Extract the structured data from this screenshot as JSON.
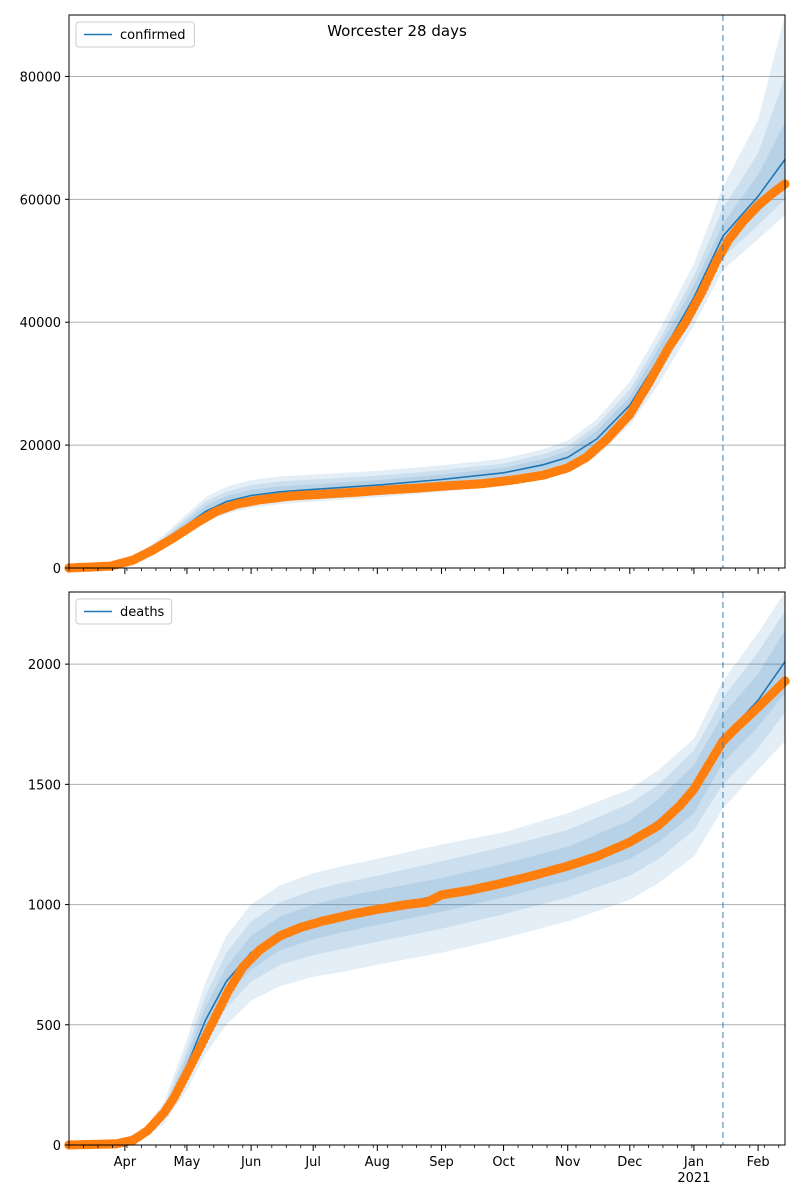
{
  "title": "Worcester 28 days",
  "colors": {
    "model": "#1f77b4",
    "observed": "#ff7f0e",
    "band": "#1f77b4",
    "grid": "#b0b0b0",
    "cutoff": "#1f77b4"
  },
  "cutoff_label_date": "2021-01-15",
  "x_axis": {
    "range": [
      "2020-03-05",
      "2021-02-14"
    ],
    "month_ticks": [
      {
        "label": "Apr",
        "date": "2020-04-01"
      },
      {
        "label": "May",
        "date": "2020-05-01"
      },
      {
        "label": "Jun",
        "date": "2020-06-01"
      },
      {
        "label": "Jul",
        "date": "2020-07-01"
      },
      {
        "label": "Aug",
        "date": "2020-08-01"
      },
      {
        "label": "Sep",
        "date": "2020-09-01"
      },
      {
        "label": "Oct",
        "date": "2020-10-01"
      },
      {
        "label": "Nov",
        "date": "2020-11-01"
      },
      {
        "label": "Dec",
        "date": "2020-12-01"
      },
      {
        "label": "Jan",
        "date": "2021-01-01"
      },
      {
        "label": "Feb",
        "date": "2021-02-01"
      }
    ],
    "year_label": "2021"
  },
  "chart_data": [
    {
      "type": "line",
      "name": "confirmed",
      "legend": "confirmed",
      "legend_position": "upper-left",
      "grid": "horizontal",
      "ylim": [
        0,
        90000
      ],
      "yticks": [
        0,
        20000,
        40000,
        60000,
        80000
      ],
      "model": [
        [
          "2020-03-05",
          0
        ],
        [
          "2020-03-20",
          150
        ],
        [
          "2020-04-01",
          900
        ],
        [
          "2020-04-10",
          2200
        ],
        [
          "2020-04-20",
          4200
        ],
        [
          "2020-05-01",
          7000
        ],
        [
          "2020-05-10",
          9200
        ],
        [
          "2020-05-20",
          10800
        ],
        [
          "2020-06-01",
          11800
        ],
        [
          "2020-06-15",
          12400
        ],
        [
          "2020-07-01",
          12800
        ],
        [
          "2020-08-01",
          13500
        ],
        [
          "2020-09-01",
          14400
        ],
        [
          "2020-10-01",
          15500
        ],
        [
          "2020-10-20",
          16800
        ],
        [
          "2020-11-01",
          18000
        ],
        [
          "2020-11-15",
          21000
        ],
        [
          "2020-12-01",
          26500
        ],
        [
          "2020-12-15",
          34000
        ],
        [
          "2021-01-01",
          44000
        ],
        [
          "2021-01-15",
          54000
        ],
        [
          "2021-02-01",
          60500
        ],
        [
          "2021-02-14",
          66500
        ]
      ],
      "bands": [
        {
          "lower": [
            0,
            0,
            700,
            1800,
            3300,
            5500,
            7400,
            8800,
            9800,
            10400,
            10800,
            11500,
            12400,
            13400,
            14600,
            15700,
            18200,
            23200,
            30000,
            39500,
            48500,
            53500,
            57500
          ],
          "upper": [
            0,
            220,
            1200,
            2800,
            5400,
            8800,
            11500,
            13200,
            14300,
            14900,
            15200,
            15800,
            16700,
            17800,
            19300,
            20700,
            24200,
            30300,
            38500,
            49500,
            62000,
            73000,
            90000
          ]
        },
        {
          "lower": [
            0,
            0,
            780,
            1950,
            3600,
            6000,
            8000,
            9500,
            10500,
            11100,
            11500,
            12200,
            13100,
            14100,
            15300,
            16400,
            19000,
            24300,
            31500,
            41000,
            50500,
            55800,
            60000
          ],
          "upper": [
            0,
            200,
            1100,
            2600,
            5000,
            8200,
            10800,
            12400,
            13500,
            14100,
            14400,
            15000,
            15900,
            17000,
            18500,
            19800,
            23200,
            29000,
            37000,
            47500,
            58500,
            67500,
            80000
          ],
          "alpha": 0.12
        },
        {
          "lower": [
            0,
            0,
            830,
            2050,
            3850,
            6400,
            8500,
            10100,
            11100,
            11700,
            12100,
            12800,
            13700,
            14800,
            16000,
            17100,
            19900,
            25300,
            32600,
            42300,
            52300,
            57800,
            62500
          ],
          "upper": [
            0,
            180,
            1000,
            2400,
            4700,
            7700,
            10100,
            11700,
            12700,
            13300,
            13600,
            14300,
            15200,
            16300,
            17700,
            19000,
            22300,
            27900,
            35800,
            46000,
            56000,
            64000,
            72500
          ],
          "alpha": 0.12
        }
      ],
      "observed": [
        [
          "2020-03-05",
          0
        ],
        [
          "2020-03-25",
          300
        ],
        [
          "2020-04-05",
          1300
        ],
        [
          "2020-04-15",
          3000
        ],
        [
          "2020-04-25",
          5000
        ],
        [
          "2020-05-05",
          7200
        ],
        [
          "2020-05-15",
          9200
        ],
        [
          "2020-05-25",
          10400
        ],
        [
          "2020-06-05",
          11100
        ],
        [
          "2020-06-20",
          11700
        ],
        [
          "2020-07-05",
          12000
        ],
        [
          "2020-07-20",
          12300
        ],
        [
          "2020-08-05",
          12700
        ],
        [
          "2020-08-20",
          13000
        ],
        [
          "2020-09-05",
          13400
        ],
        [
          "2020-09-20",
          13700
        ],
        [
          "2020-10-05",
          14300
        ],
        [
          "2020-10-20",
          15100
        ],
        [
          "2020-11-01",
          16300
        ],
        [
          "2020-11-10",
          18000
        ],
        [
          "2020-11-20",
          21000
        ],
        [
          "2020-12-01",
          25000
        ],
        [
          "2020-12-10",
          30000
        ],
        [
          "2020-12-20",
          36000
        ],
        [
          "2020-12-28",
          40000
        ],
        [
          "2021-01-05",
          45000
        ],
        [
          "2021-01-12",
          50000
        ],
        [
          "2021-01-18",
          53500
        ],
        [
          "2021-01-25",
          56500
        ],
        [
          "2021-02-01",
          59000
        ],
        [
          "2021-02-08",
          61000
        ],
        [
          "2021-02-14",
          62500
        ]
      ]
    },
    {
      "type": "line",
      "name": "deaths",
      "legend": "deaths",
      "legend_position": "upper-left",
      "grid": "horizontal",
      "ylim": [
        0,
        2300
      ],
      "yticks": [
        0,
        500,
        1000,
        1500,
        2000
      ],
      "model": [
        [
          "2020-03-05",
          0
        ],
        [
          "2020-03-25",
          5
        ],
        [
          "2020-04-10",
          40
        ],
        [
          "2020-04-20",
          130
        ],
        [
          "2020-05-01",
          330
        ],
        [
          "2020-05-10",
          520
        ],
        [
          "2020-05-20",
          680
        ],
        [
          "2020-06-01",
          800
        ],
        [
          "2020-06-15",
          880
        ],
        [
          "2020-07-01",
          925
        ],
        [
          "2020-07-15",
          955
        ],
        [
          "2020-08-01",
          985
        ],
        [
          "2020-09-01",
          1040
        ],
        [
          "2020-10-01",
          1100
        ],
        [
          "2020-11-01",
          1170
        ],
        [
          "2020-12-01",
          1270
        ],
        [
          "2020-12-15",
          1350
        ],
        [
          "2021-01-01",
          1480
        ],
        [
          "2021-01-15",
          1690
        ],
        [
          "2021-02-01",
          1850
        ],
        [
          "2021-02-14",
          2010
        ]
      ],
      "bands": [
        {
          "lower": [
            0,
            0,
            25,
            90,
            230,
            380,
            500,
            600,
            660,
            700,
            720,
            750,
            800,
            860,
            930,
            1020,
            1090,
            1200,
            1400,
            1560,
            1680
          ],
          "upper": [
            0,
            10,
            60,
            180,
            440,
            680,
            870,
            1000,
            1080,
            1130,
            1160,
            1190,
            1250,
            1300,
            1380,
            1480,
            1560,
            1690,
            1930,
            2130,
            2300
          ]
        },
        {
          "lower": [
            0,
            0,
            30,
            105,
            265,
            430,
            570,
            680,
            750,
            790,
            815,
            845,
            900,
            960,
            1030,
            1120,
            1190,
            1310,
            1500,
            1650,
            1800
          ],
          "upper": [
            0,
            8,
            50,
            160,
            400,
            620,
            800,
            930,
            1010,
            1060,
            1090,
            1120,
            1180,
            1240,
            1310,
            1420,
            1500,
            1640,
            1860,
            2050,
            2220
          ],
          "alpha": 0.12
        },
        {
          "lower": [
            0,
            2,
            35,
            115,
            290,
            470,
            620,
            730,
            810,
            855,
            885,
            915,
            970,
            1030,
            1100,
            1190,
            1260,
            1380,
            1590,
            1740,
            1880
          ],
          "upper": [
            0,
            6,
            45,
            145,
            370,
            575,
            740,
            870,
            950,
            1000,
            1030,
            1060,
            1110,
            1170,
            1240,
            1350,
            1440,
            1580,
            1790,
            1960,
            2140
          ],
          "alpha": 0.12
        }
      ],
      "observed": [
        [
          "2020-03-05",
          0
        ],
        [
          "2020-03-28",
          5
        ],
        [
          "2020-04-05",
          20
        ],
        [
          "2020-04-12",
          60
        ],
        [
          "2020-04-20",
          135
        ],
        [
          "2020-04-25",
          200
        ],
        [
          "2020-05-01",
          300
        ],
        [
          "2020-05-07",
          400
        ],
        [
          "2020-05-14",
          520
        ],
        [
          "2020-05-21",
          640
        ],
        [
          "2020-05-28",
          740
        ],
        [
          "2020-06-05",
          810
        ],
        [
          "2020-06-15",
          870
        ],
        [
          "2020-06-25",
          905
        ],
        [
          "2020-07-05",
          930
        ],
        [
          "2020-07-20",
          960
        ],
        [
          "2020-08-01",
          980
        ],
        [
          "2020-08-15",
          1000
        ],
        [
          "2020-08-25",
          1010
        ],
        [
          "2020-09-01",
          1040
        ],
        [
          "2020-09-15",
          1060
        ],
        [
          "2020-10-01",
          1090
        ],
        [
          "2020-10-15",
          1120
        ],
        [
          "2020-11-01",
          1160
        ],
        [
          "2020-11-15",
          1200
        ],
        [
          "2020-12-01",
          1260
        ],
        [
          "2020-12-15",
          1330
        ],
        [
          "2020-12-25",
          1410
        ],
        [
          "2021-01-01",
          1480
        ],
        [
          "2021-01-08",
          1580
        ],
        [
          "2021-01-15",
          1680
        ],
        [
          "2021-01-22",
          1740
        ],
        [
          "2021-02-01",
          1820
        ],
        [
          "2021-02-14",
          1930
        ]
      ]
    }
  ]
}
